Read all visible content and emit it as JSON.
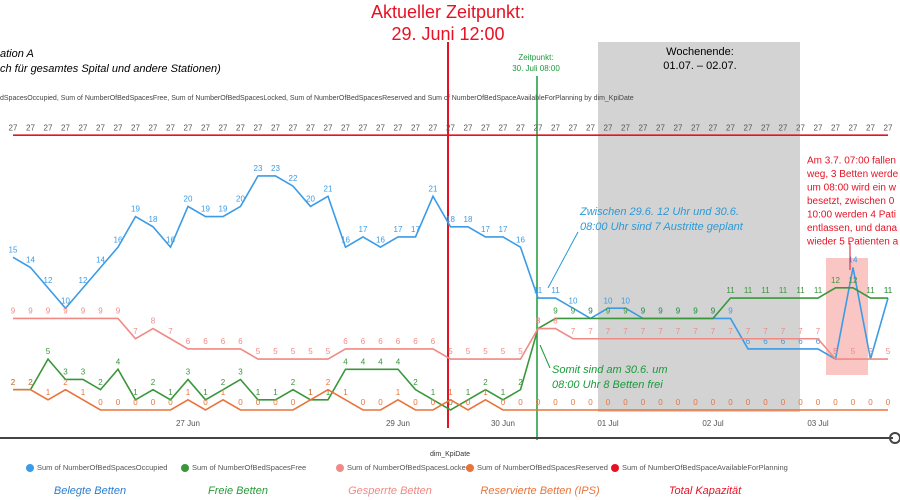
{
  "chart_data": {
    "type": "line",
    "title": [
      "ation A",
      "ch für gesamtes Spital und andere Stationen)"
    ],
    "subtitle": "dSpacesOccupied, Sum of NumberOfBedSpacesFree, Sum of NumberOfBedSpacesLocked, Sum of NumberOfBedSpacesReserved and Sum of NumberOfBedSpaceAvailableForPlanning by dim_KpiDate",
    "x_label": "dim_KpiDate",
    "categories": [
      null,
      null,
      null,
      null,
      null,
      null,
      null,
      null,
      null,
      null,
      "27 Jun",
      null,
      null,
      null,
      null,
      null,
      null,
      null,
      null,
      null,
      null,
      null,
      "29 Jun",
      null,
      null,
      null,
      null,
      null,
      "30 Jun",
      null,
      null,
      null,
      null,
      null,
      "01 Jul",
      null,
      null,
      null,
      null,
      null,
      "02 Jul",
      null,
      null,
      null,
      null,
      null,
      "03 Jul",
      null,
      null,
      null,
      null
    ],
    "ylim": [
      0,
      28
    ],
    "series": [
      {
        "name": "Sum of NumberOfBedSpacesOccupied",
        "color": "#3b9be6",
        "values": [
          15,
          14,
          12,
          10,
          12,
          14,
          16,
          19,
          18,
          16,
          20,
          19,
          19,
          20,
          23,
          23,
          22,
          20,
          21,
          16,
          17,
          16,
          17,
          17,
          21,
          18,
          18,
          17,
          17,
          16,
          11,
          11,
          10,
          9,
          10,
          10,
          9,
          9,
          9,
          9,
          9,
          9,
          6,
          6,
          6,
          6,
          6,
          5,
          14,
          5,
          11
        ]
      },
      {
        "name": "Sum of NumberOfBedSpacesFree",
        "color": "#3a963a",
        "values": [
          2,
          2,
          5,
          3,
          3,
          2,
          4,
          1,
          2,
          1,
          3,
          1,
          2,
          3,
          1,
          1,
          2,
          1,
          1,
          4,
          4,
          4,
          4,
          2,
          1,
          0,
          1,
          2,
          1,
          2,
          8,
          9,
          9,
          9,
          9,
          9,
          9,
          9,
          9,
          9,
          9,
          11,
          11,
          11,
          11,
          11,
          11,
          12,
          12,
          11,
          11
        ]
      },
      {
        "name": "Sum of NumberOfBedSpacesLocked",
        "color": "#f08a84",
        "values": [
          9,
          9,
          9,
          9,
          9,
          9,
          9,
          7,
          8,
          7,
          6,
          6,
          6,
          6,
          5,
          5,
          5,
          5,
          5,
          6,
          6,
          6,
          6,
          6,
          6,
          5,
          5,
          5,
          5,
          5,
          8,
          8,
          7,
          7,
          7,
          7,
          7,
          7,
          7,
          7,
          7,
          7,
          7,
          7,
          7,
          7,
          7,
          5,
          5,
          5,
          5
        ]
      },
      {
        "name": "Sum of NumberOfBedSpacesReserved",
        "color": "#e8743b",
        "values": [
          2,
          2,
          1,
          2,
          1,
          0,
          0,
          0,
          0,
          0,
          1,
          0,
          1,
          0,
          0,
          0,
          0,
          1,
          2,
          1,
          0,
          0,
          1,
          0,
          0,
          1,
          0,
          1,
          0,
          0,
          0,
          0,
          0,
          0,
          0,
          0,
          0,
          0,
          0,
          0,
          0,
          0,
          0,
          0,
          0,
          0,
          0,
          0,
          0,
          0,
          0
        ]
      },
      {
        "name": "Sum of NumberOfBedSpaceAvailableForPlanning",
        "color": "#e81123",
        "values": [
          27,
          27,
          27,
          27,
          27,
          27,
          27,
          27,
          27,
          27,
          27,
          27,
          27,
          27,
          27,
          27,
          27,
          27,
          27,
          27,
          27,
          27,
          27,
          27,
          27,
          27,
          27,
          27,
          27,
          27,
          27,
          27,
          27,
          27,
          27,
          27,
          27,
          27,
          27,
          27,
          27,
          27,
          27,
          27,
          27,
          27,
          27,
          27,
          27,
          27,
          27
        ]
      }
    ],
    "captions": [
      "Belegte Betten",
      "Freie Betten",
      "Gesperrte Betten",
      "Reservierte Betten (IPS)",
      "Total Kapazität"
    ],
    "annotations": {
      "now": [
        "Aktueller Zeitpunkt:",
        "29. Juni 12:00"
      ],
      "cutoff": [
        "Zeitpunkt:",
        "30. Juli 08:00"
      ],
      "weekend": [
        "Wochenende:",
        "01.07. – 02.07."
      ],
      "exits": [
        "Zwischen 29.6. 12 Uhr und 30.6.",
        "08:00 Uhr sind 7 Austritte geplant"
      ],
      "free": [
        "Somit sind am 30.6. um",
        "08:00 Uhr 8 Betten frei"
      ],
      "drop": [
        "Am 3.7. 07:00 fallen",
        "weg, 3 Betten werde",
        "um 08:00 wird ein w",
        "besetzt, zwischen 0",
        "10:00 werden 4 Pati",
        "entlassen, und dana",
        "wieder 5 Patienten a"
      ]
    }
  }
}
